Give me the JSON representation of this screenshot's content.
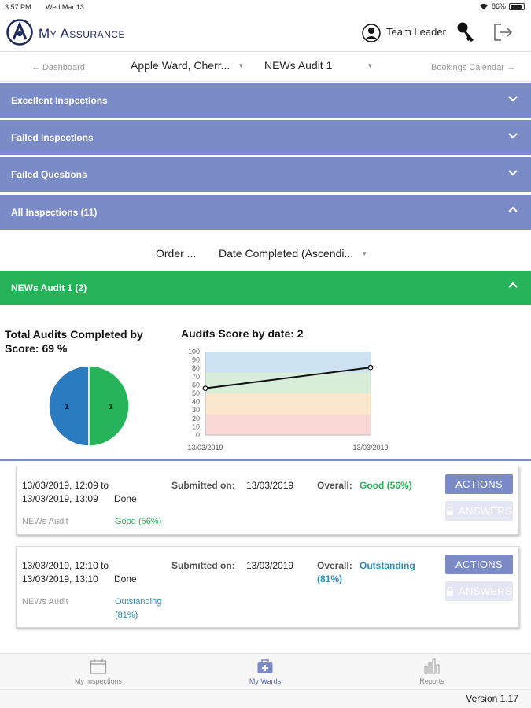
{
  "status_bar": {
    "time": "3:57 PM",
    "date": "Wed Mar 13",
    "battery": "86%"
  },
  "header": {
    "app_title": "My Assurance",
    "user_label": "Team Leader"
  },
  "nav": {
    "back": "← Dashboard",
    "ward_select": "Apple Ward, Cherr...",
    "audit_select": "NEWs Audit 1",
    "forward": "Bookings Calendar →"
  },
  "sections": [
    {
      "label": "Excellent Inspections",
      "expanded": false
    },
    {
      "label": "Failed Inspections",
      "expanded": false
    },
    {
      "label": "Failed Questions",
      "expanded": false
    },
    {
      "label": "All Inspections (11)",
      "expanded": true
    }
  ],
  "order": {
    "label": "Order ...",
    "value": "Date Completed (Ascendi..."
  },
  "audit_group": {
    "label": "NEWs Audit 1 (2)",
    "expanded": true
  },
  "colors": {
    "accent": "#7b8bc8",
    "green": "#27b35a",
    "blue": "#2a7bbf",
    "teal": "#2a8db8"
  },
  "pie": {
    "title": "Total Audits Completed by Score: 69 %"
  },
  "line": {
    "title": "Audits Score by date: 2"
  },
  "chart_data": [
    {
      "type": "pie",
      "title": "Total Audits Completed by Score: 69 %",
      "slices": [
        {
          "value": 1,
          "label": "1",
          "color": "#2a7bbf"
        },
        {
          "value": 1,
          "label": "1",
          "color": "#27b35a"
        }
      ]
    },
    {
      "type": "line",
      "title": "Audits Score by date: 2",
      "x": [
        "13/03/2019",
        "13/03/2019"
      ],
      "y": [
        56,
        81
      ],
      "ylim": [
        0,
        100
      ],
      "yticks": [
        0,
        10,
        20,
        30,
        40,
        50,
        60,
        70,
        80,
        90,
        100
      ],
      "bands": [
        {
          "from": 0,
          "to": 25,
          "color": "#f9d9d6"
        },
        {
          "from": 25,
          "to": 50,
          "color": "#fbe8cc"
        },
        {
          "from": 50,
          "to": 75,
          "color": "#d8eed9"
        },
        {
          "from": 75,
          "to": 100,
          "color": "#cde3f2"
        }
      ]
    }
  ],
  "inspections": [
    {
      "range_line1": "13/03/2019, 12:09 to",
      "range_line2": "13/03/2019, 13:09",
      "status": "Done",
      "audit_name": "NEWs Audit",
      "score_label": "Good (56%)",
      "submitted_label": "Submitted on:",
      "submitted_date": "13/03/2019",
      "overall_label": "Overall:",
      "overall_value": "Good (56%)",
      "actions": "ACTIONS",
      "answers": "ANSWERS"
    },
    {
      "range_line1": "13/03/2019, 12:10 to",
      "range_line2": "13/03/2019, 13:10",
      "status": "Done",
      "audit_name": "NEWs Audit",
      "score_label": "Outstanding (81%)",
      "submitted_label": "Submitted on:",
      "submitted_date": "13/03/2019",
      "overall_label": "Overall:",
      "overall_value": "Outstanding (81%)",
      "actions": "ACTIONS",
      "answers": "ANSWERS"
    }
  ],
  "tabs": [
    {
      "label": "My Inspections",
      "icon": "calendar-icon",
      "active": false
    },
    {
      "label": "My Wards",
      "icon": "medical-bag-icon",
      "active": true
    },
    {
      "label": "Reports",
      "icon": "bar-chart-icon",
      "active": false
    }
  ],
  "version": "Version 1.17"
}
